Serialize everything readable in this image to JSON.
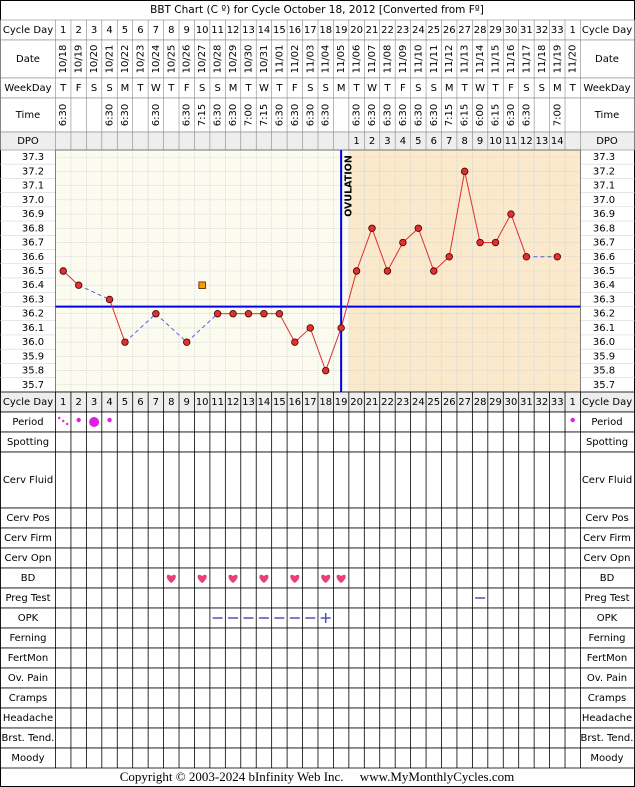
{
  "chart_data": {
    "type": "line",
    "title": "BBT Chart (C º) for Cycle October 18, 2012  [Converted from Fº]",
    "header_labels": [
      "Cycle Day",
      "Date",
      "WeekDay",
      "Time",
      "DPO"
    ],
    "categories": [
      1,
      2,
      3,
      4,
      5,
      6,
      7,
      8,
      9,
      10,
      11,
      12,
      13,
      14,
      15,
      16,
      17,
      18,
      19,
      20,
      21,
      22,
      23,
      24,
      25,
      26,
      27,
      28,
      29,
      30,
      31,
      32,
      33,
      1
    ],
    "dates": [
      "10/18",
      "10/19",
      "10/20",
      "10/21",
      "10/22",
      "10/23",
      "10/24",
      "10/25",
      "10/26",
      "10/27",
      "10/28",
      "10/29",
      "10/30",
      "10/31",
      "11/01",
      "11/02",
      "11/03",
      "11/04",
      "11/05",
      "11/06",
      "11/07",
      "11/08",
      "11/09",
      "11/10",
      "11/11",
      "11/12",
      "11/13",
      "11/14",
      "11/15",
      "11/16",
      "11/17",
      "11/18",
      "11/19",
      "11/20"
    ],
    "weekdays": [
      "T",
      "F",
      "S",
      "S",
      "M",
      "T",
      "W",
      "T",
      "F",
      "S",
      "S",
      "M",
      "T",
      "W",
      "T",
      "F",
      "S",
      "S",
      "M",
      "T",
      "W",
      "T",
      "F",
      "S",
      "S",
      "M",
      "T",
      "W",
      "T",
      "F",
      "S",
      "S",
      "M",
      "T"
    ],
    "times": [
      "6:30",
      null,
      null,
      "6:30",
      "6:30",
      null,
      "6:30",
      null,
      "6:30",
      "7:15",
      "6:30",
      "6:30",
      "7:00",
      "7:15",
      "6:30",
      "6:30",
      "6:30",
      "6:30",
      null,
      "6:30",
      "6:30",
      "6:30",
      "6:30",
      "6:30",
      "6:30",
      "7:15",
      "6:15",
      "6:00",
      "6:15",
      "6:30",
      "6:30",
      null,
      "7:00",
      null
    ],
    "dpo": [
      null,
      null,
      null,
      null,
      null,
      null,
      null,
      null,
      null,
      null,
      null,
      null,
      null,
      null,
      null,
      null,
      null,
      null,
      null,
      1,
      2,
      3,
      4,
      5,
      6,
      7,
      8,
      9,
      10,
      11,
      12,
      13,
      14,
      null
    ],
    "values": [
      36.5,
      36.4,
      null,
      36.3,
      36.0,
      null,
      36.2,
      null,
      36.0,
      null,
      36.2,
      36.2,
      36.2,
      36.2,
      36.2,
      36.0,
      36.1,
      35.8,
      36.1,
      36.5,
      36.8,
      36.5,
      36.7,
      36.8,
      36.5,
      36.6,
      37.2,
      36.7,
      36.7,
      36.9,
      36.6,
      null,
      36.6,
      null
    ],
    "excluded_values": [
      null,
      null,
      null,
      null,
      null,
      null,
      null,
      null,
      null,
      36.4,
      null,
      null,
      null,
      null,
      null,
      null,
      null,
      null,
      null,
      null,
      null,
      null,
      null,
      null,
      null,
      null,
      null,
      null,
      null,
      null,
      null,
      null,
      null,
      null
    ],
    "color": "#e03030",
    "ylim": [
      35.65,
      37.35
    ],
    "yticks": [
      37.3,
      37.2,
      37.1,
      {
        "value": 37,
        "label": "37.0"
      },
      36.9,
      36.8,
      36.7,
      36.6,
      36.5,
      36.4,
      36.3,
      36.2,
      36.1,
      {
        "value": 36,
        "label": "36.0"
      },
      35.9,
      35.8,
      35.7
    ],
    "coverline": 36.25,
    "ovulation_day": 19,
    "ovulation_label": "OVULATION",
    "sheet_rows": [
      "Cycle Day",
      "Period",
      "Spotting",
      "Cerv Fluid",
      "Cerv Pos",
      "Cerv Firm",
      "Cerv Opn",
      "BD",
      "Preg Test",
      "OPK",
      "Ferning",
      "FertMon",
      "Ov. Pain",
      "Cramps",
      "Headache",
      "Brst. Tend.",
      "Moody"
    ],
    "footer": "Copyright © 2003-2024 bInfinity Web Inc.     www.MyMonthlyCycles.com"
  }
}
